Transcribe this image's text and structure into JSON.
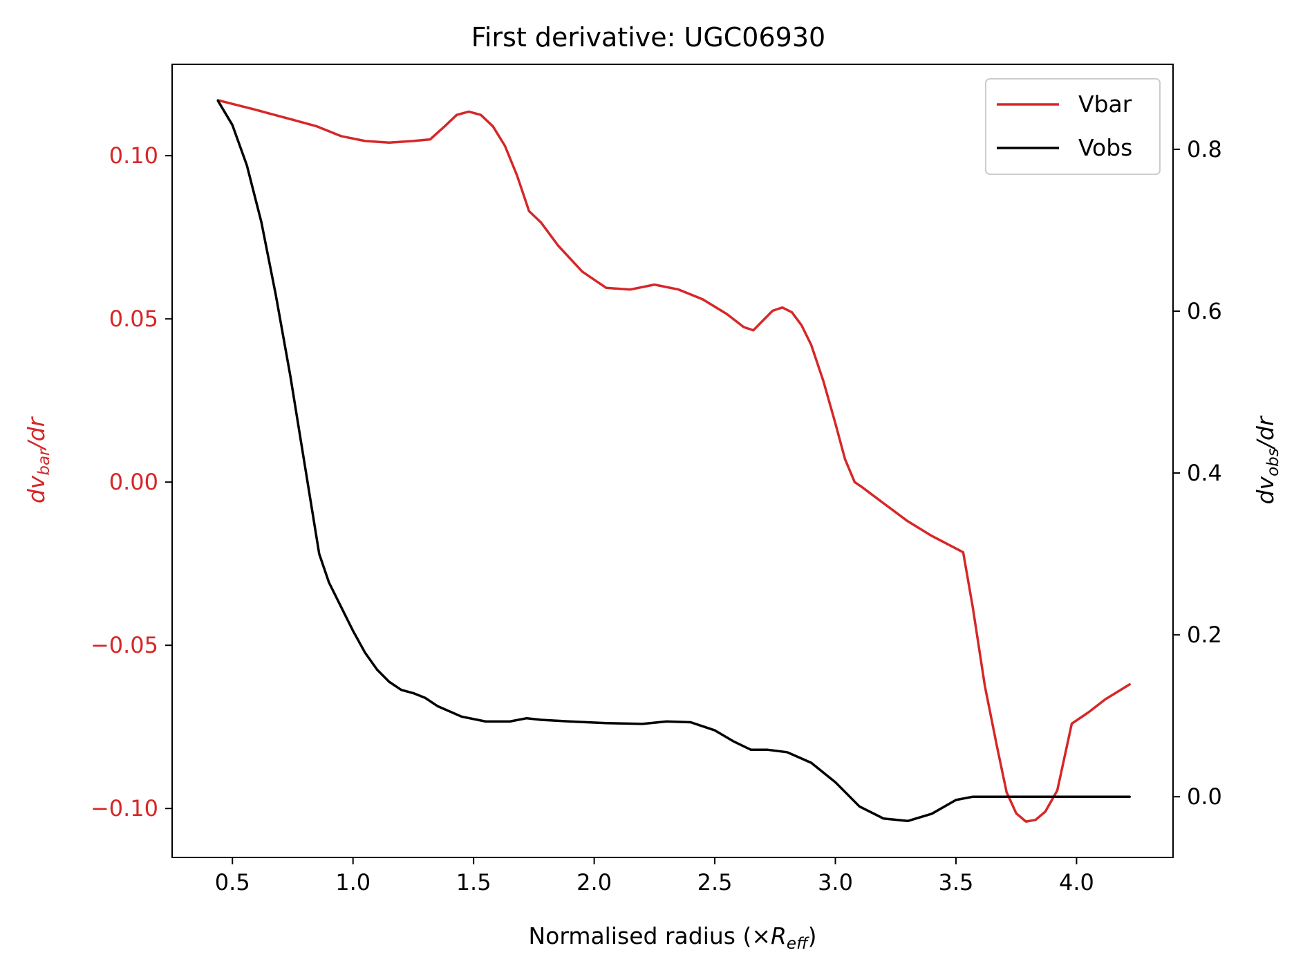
{
  "chart_data": {
    "type": "line",
    "title": "First derivative: UGC06930",
    "xlabel": {
      "prefix": "Normalised radius (×",
      "symbol": "R",
      "sub": "eff",
      "suffix": ")"
    },
    "ylabel_left": {
      "prefix": "d",
      "symbol": "v",
      "sub": "bar",
      "suffix": "/dr"
    },
    "ylabel_right": {
      "prefix": "d",
      "symbol": "v",
      "sub": "obs",
      "suffix": "/dr"
    },
    "xlim": [
      0.25,
      4.4
    ],
    "ylim_left": [
      -0.115,
      0.128
    ],
    "ylim_right": [
      -0.075,
      0.905
    ],
    "x_ticks": [
      0.5,
      1.0,
      1.5,
      2.0,
      2.5,
      3.0,
      3.5,
      4.0
    ],
    "x_tick_labels": [
      "0.5",
      "1.0",
      "1.5",
      "2.0",
      "2.5",
      "3.0",
      "3.5",
      "4.0"
    ],
    "y_left_ticks": [
      0.1,
      0.05,
      0.0,
      -0.05,
      -0.1
    ],
    "y_left_tick_labels": [
      "0.10",
      "0.05",
      "0.00",
      "−0.05",
      "−0.10"
    ],
    "y_right_ticks": [
      0.8,
      0.6,
      0.4,
      0.2,
      0.0
    ],
    "y_right_tick_labels": [
      "0.8",
      "0.6",
      "0.4",
      "0.2",
      "0.0"
    ],
    "legend": {
      "placement": "upper-right",
      "entries": [
        "Vbar",
        "Vobs"
      ]
    },
    "grid": false,
    "colors": {
      "vbar": "#d62728",
      "vobs": "#000000"
    },
    "series": [
      {
        "name": "Vbar",
        "axis": "left",
        "x": [
          0.44,
          0.6,
          0.75,
          0.85,
          0.95,
          1.05,
          1.15,
          1.25,
          1.32,
          1.38,
          1.43,
          1.48,
          1.53,
          1.58,
          1.63,
          1.68,
          1.73,
          1.78,
          1.85,
          1.95,
          2.05,
          2.15,
          2.25,
          2.35,
          2.45,
          2.55,
          2.62,
          2.66,
          2.7,
          2.74,
          2.78,
          2.82,
          2.86,
          2.9,
          2.95,
          3.0,
          3.04,
          3.08,
          3.11,
          3.2,
          3.3,
          3.4,
          3.53,
          3.57,
          3.62,
          3.67,
          3.71,
          3.75,
          3.79,
          3.83,
          3.87,
          3.92,
          3.98,
          4.05,
          4.12,
          4.22
        ],
        "y": [
          0.117,
          0.114,
          0.111,
          0.109,
          0.106,
          0.1045,
          0.104,
          0.1045,
          0.105,
          0.109,
          0.1125,
          0.1135,
          0.1125,
          0.109,
          0.103,
          0.094,
          0.083,
          0.0795,
          0.0725,
          0.0645,
          0.0595,
          0.059,
          0.0605,
          0.059,
          0.056,
          0.0515,
          0.0475,
          0.0465,
          0.0495,
          0.0525,
          0.0535,
          0.052,
          0.048,
          0.042,
          0.031,
          0.018,
          0.007,
          0.0,
          -0.0015,
          -0.0065,
          -0.012,
          -0.0165,
          -0.0215,
          -0.0385,
          -0.0625,
          -0.081,
          -0.095,
          -0.1015,
          -0.104,
          -0.1035,
          -0.101,
          -0.0945,
          -0.074,
          -0.0705,
          -0.0665,
          -0.062
        ]
      },
      {
        "name": "Vobs",
        "axis": "right",
        "x": [
          0.44,
          0.5,
          0.56,
          0.62,
          0.68,
          0.74,
          0.8,
          0.86,
          0.9,
          0.95,
          1.0,
          1.05,
          1.1,
          1.15,
          1.2,
          1.25,
          1.3,
          1.35,
          1.45,
          1.55,
          1.65,
          1.72,
          1.78,
          1.9,
          2.05,
          2.2,
          2.3,
          2.4,
          2.5,
          2.58,
          2.65,
          2.72,
          2.8,
          2.9,
          3.0,
          3.1,
          3.2,
          3.3,
          3.4,
          3.5,
          3.57,
          3.65,
          3.8,
          4.0,
          4.22
        ],
        "y": [
          0.86,
          0.83,
          0.78,
          0.71,
          0.62,
          0.52,
          0.41,
          0.3,
          0.265,
          0.235,
          0.205,
          0.178,
          0.157,
          0.142,
          0.132,
          0.128,
          0.122,
          0.112,
          0.099,
          0.093,
          0.093,
          0.097,
          0.095,
          0.093,
          0.091,
          0.09,
          0.093,
          0.092,
          0.082,
          0.068,
          0.058,
          0.058,
          0.055,
          0.042,
          0.018,
          -0.012,
          -0.027,
          -0.03,
          -0.021,
          -0.004,
          0.0,
          0.0,
          0.0,
          0.0,
          0.0
        ]
      }
    ]
  }
}
